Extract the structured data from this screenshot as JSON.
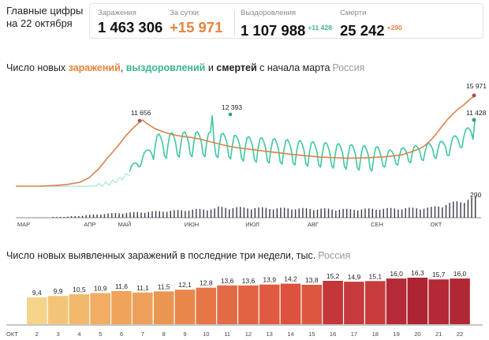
{
  "header": {
    "title_line1": "Главные цифры",
    "title_line2": "на 22 октября"
  },
  "stats": {
    "infections": {
      "label": "Заражения",
      "value": "1 463 306"
    },
    "daily": {
      "label": "За сутки",
      "value": "+15 971"
    },
    "recoveries": {
      "label": "Выздоровления",
      "value": "1 107 988",
      "delta": "+11 428"
    },
    "deaths": {
      "label": "Смерти",
      "value": "25 242",
      "delta": "+290"
    }
  },
  "chart1": {
    "title_pre": "Число новых ",
    "title_inf": "заражений",
    "title_sep1": ", ",
    "title_rec": "выздоровлений",
    "title_sep2": " и ",
    "title_dth": "смертей",
    "title_post": " с начала марта",
    "region": "Россия"
  },
  "chart2": {
    "title": "Число новых выявленных заражений в последние три недели, тыс.",
    "region": "Россия"
  },
  "colors": {
    "infections": "#d9834c",
    "recoveries": "#3fc7a3",
    "recoveries_early": "#a9e2dc",
    "deaths_bars": "#3a3a4a",
    "inf_marker": "#b8494a",
    "rec_marker": "#2f9e78"
  },
  "chart_data": [
    {
      "type": "line",
      "title": "",
      "x_ticks": [
        "МАР",
        "АПР",
        "МАЙ",
        "ИЮН",
        "ИЮЛ",
        "АВГ",
        "СЕН",
        "ОКТ"
      ],
      "series": [
        {
          "name": "заражений",
          "peak_label": "11 656",
          "last_label": "15 971",
          "points": [
            [
              0,
              0
            ],
            [
              14,
              10
            ],
            [
              21,
              110
            ],
            [
              28,
              300
            ],
            [
              35,
              700
            ],
            [
              40,
              1500
            ],
            [
              45,
              3000
            ],
            [
              50,
              5000
            ],
            [
              55,
              6800
            ],
            [
              60,
              8900
            ],
            [
              65,
              10600
            ],
            [
              69,
              11656
            ],
            [
              72,
              10900
            ],
            [
              76,
              10100
            ],
            [
              80,
              9600
            ],
            [
              85,
              9100
            ],
            [
              90,
              8800
            ],
            [
              95,
              8600
            ],
            [
              100,
              8300
            ],
            [
              105,
              7900
            ],
            [
              110,
              7500
            ],
            [
              115,
              7100
            ],
            [
              120,
              6800
            ],
            [
              125,
              6600
            ],
            [
              130,
              6400
            ],
            [
              135,
              6200
            ],
            [
              140,
              6000
            ],
            [
              145,
              5800
            ],
            [
              150,
              5600
            ],
            [
              155,
              5450
            ],
            [
              160,
              5300
            ],
            [
              165,
              5150
            ],
            [
              170,
              5050
            ],
            [
              175,
              5000
            ],
            [
              180,
              4950
            ],
            [
              185,
              4950
            ],
            [
              190,
              4980
            ],
            [
              195,
              5050
            ],
            [
              200,
              5150
            ],
            [
              205,
              5300
            ],
            [
              210,
              5500
            ],
            [
              215,
              6000
            ],
            [
              220,
              6600
            ],
            [
              223,
              7200
            ],
            [
              226,
              8100
            ],
            [
              229,
              9200
            ],
            [
              232,
              10500
            ],
            [
              235,
              11700
            ],
            [
              238,
              12700
            ],
            [
              241,
              13600
            ],
            [
              244,
              14300
            ],
            [
              247,
              15200
            ],
            [
              250,
              15971
            ]
          ]
        },
        {
          "name": "выздоровлений",
          "peak_label": "12 393",
          "last_label": "11 428"
        },
        {
          "name": "смертей",
          "last_label": "290"
        }
      ],
      "ylim": [
        0,
        17000
      ]
    },
    {
      "type": "bar",
      "title": "Число новых выявленных заражений в последние три недели, тыс.",
      "x_prefix": "ОКТ",
      "categories": [
        "2",
        "3",
        "4",
        "5",
        "6",
        "7",
        "8",
        "9",
        "10",
        "11",
        "12",
        "13",
        "14",
        "15",
        "16",
        "17",
        "18",
        "19",
        "20",
        "21",
        "22"
      ],
      "values": [
        9.4,
        9.9,
        10.5,
        10.9,
        11.6,
        11.1,
        11.5,
        12.1,
        12.8,
        13.6,
        13.6,
        13.9,
        14.2,
        13.8,
        15.2,
        14.9,
        15.1,
        16.0,
        16.3,
        15.7,
        16.0
      ],
      "value_labels": [
        "9,4",
        "9,9",
        "10,5",
        "10,9",
        "11,6",
        "11,1",
        "11,5",
        "12,1",
        "12,8",
        "13,6",
        "13,6",
        "13,9",
        "14,2",
        "13,8",
        "15,2",
        "14,9",
        "15,1",
        "16,0",
        "16,3",
        "15,7",
        "16,0"
      ],
      "weekend_categories": [
        "3",
        "4",
        "10",
        "11",
        "17",
        "18"
      ],
      "ylim": [
        0,
        17
      ]
    }
  ]
}
